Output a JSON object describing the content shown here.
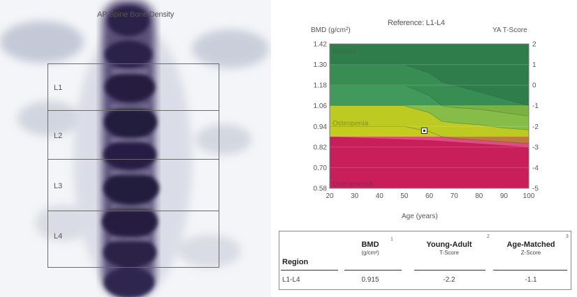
{
  "scan": {
    "title": "AP Spine Bone Density",
    "regions": [
      "L1",
      "L2",
      "L3",
      "L4"
    ]
  },
  "chart": {
    "title": "Reference: L1-L4",
    "ylabel_left": "BMD (g/cm²)",
    "ylabel_right": "YA T-Score",
    "xlabel": "Age (years)",
    "zone_labels": [
      "Normal",
      "Osteopenia",
      "Osteoporosis"
    ]
  },
  "chart_data": {
    "type": "area",
    "title": "Reference: L1-L4",
    "xlabel": "Age (years)",
    "ylabel": "BMD (g/cm²)",
    "y2label": "YA T-Score",
    "x_ticks": [
      "20",
      "30",
      "40",
      "50",
      "60",
      "70",
      "80",
      "90",
      "100"
    ],
    "y_ticks": [
      "1.42",
      "1.30",
      "1.18",
      "1.06",
      "0.94",
      "0.82",
      "0.70",
      "0.58"
    ],
    "y2_ticks": [
      "2",
      "1",
      "0",
      "-1",
      "-2",
      "-3",
      "-4",
      "-5"
    ],
    "xlim": [
      20,
      100
    ],
    "ylim": [
      0.58,
      1.42
    ],
    "zones": [
      {
        "name": "Normal",
        "from": 1.06,
        "to": 1.42,
        "color": "#2e7d4a"
      },
      {
        "name": "Osteopenia",
        "from": 0.88,
        "to": 1.06,
        "color": "#c3cc1f"
      },
      {
        "name": "Osteoporosis",
        "from": 0.58,
        "to": 0.88,
        "color": "#c81e5a"
      }
    ],
    "reference_curves": [
      {
        "x": [
          20,
          30,
          40,
          50,
          60,
          65,
          70,
          80,
          90,
          100
        ],
        "y": [
          1.3,
          1.3,
          1.3,
          1.3,
          1.25,
          1.2,
          1.18,
          1.14,
          1.1,
          1.06
        ]
      },
      {
        "x": [
          20,
          30,
          40,
          50,
          60,
          65,
          70,
          80,
          90,
          100
        ],
        "y": [
          1.18,
          1.18,
          1.18,
          1.18,
          1.12,
          1.06,
          1.05,
          1.04,
          1.02,
          1.0
        ]
      },
      {
        "x": [
          20,
          30,
          40,
          50,
          60,
          65,
          70,
          80,
          90,
          100
        ],
        "y": [
          1.06,
          1.06,
          1.06,
          1.06,
          1.02,
          0.97,
          0.96,
          0.95,
          0.93,
          0.92
        ]
      },
      {
        "x": [
          20,
          30,
          40,
          50,
          60,
          65,
          70,
          80,
          90,
          100
        ],
        "y": [
          0.94,
          0.94,
          0.94,
          0.94,
          0.91,
          0.88,
          0.87,
          0.86,
          0.85,
          0.84
        ]
      }
    ],
    "patient_point": {
      "age": 58,
      "bmd": 0.915
    },
    "grid": true,
    "legend": "none"
  },
  "results": {
    "headers": [
      {
        "label": "Region",
        "sub": "",
        "num": ""
      },
      {
        "label": "BMD",
        "sub": "(g/cm²)",
        "num": "1"
      },
      {
        "label": "Young-Adult",
        "sub": "T-Score",
        "num": "2"
      },
      {
        "label": "Age-Matched",
        "sub": "Z-Score",
        "num": "3"
      }
    ],
    "rows": [
      {
        "region": "L1-L4",
        "bmd": "0.915",
        "t_score": "-2.2",
        "z_score": "-1.1"
      }
    ]
  }
}
